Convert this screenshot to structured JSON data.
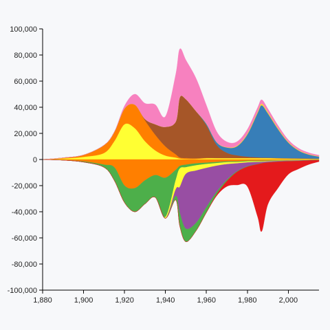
{
  "chart_data": {
    "type": "area",
    "stacking": "diverging",
    "curve": "smooth",
    "xlim": [
      1880,
      2015
    ],
    "ylim": [
      -100000,
      100000
    ],
    "x_ticks": [
      1880,
      1900,
      1920,
      1940,
      1960,
      1980,
      2000
    ],
    "y_ticks": [
      100000,
      80000,
      60000,
      40000,
      20000,
      0,
      -20000,
      -40000,
      -60000,
      -80000,
      -100000
    ],
    "x_tick_labels": [
      "1,880",
      "1,900",
      "1,920",
      "1,940",
      "1,960",
      "1,980",
      "2,000"
    ],
    "y_tick_labels": [
      "100,000",
      "80,000",
      "60,000",
      "40,000",
      "20,000",
      "0",
      "-20,000",
      "-40,000",
      "-60,000",
      "-80,000",
      "-100,000"
    ],
    "x": [
      1880,
      1890,
      1900,
      1910,
      1915,
      1920,
      1925,
      1930,
      1935,
      1940,
      1945,
      1947,
      1950,
      1955,
      1960,
      1965,
      1970,
      1975,
      1980,
      1985,
      1987,
      1990,
      1995,
      2000,
      2005,
      2010,
      2015
    ],
    "upper_series": [
      {
        "color": "#ffff33",
        "values": [
          0,
          800,
          2000,
          5000,
          14000,
          27000,
          24000,
          14000,
          7000,
          3000,
          1500,
          800,
          500,
          500,
          1000,
          1000,
          1000,
          1000,
          1000,
          1000,
          1000,
          1000,
          800,
          700,
          600,
          500,
          400
        ]
      },
      {
        "color": "#ff7f00",
        "values": [
          0,
          500,
          1500,
          6000,
          7000,
          12000,
          18000,
          16000,
          12000,
          7000,
          2500,
          800,
          600,
          400,
          300,
          200,
          200,
          200,
          200,
          200,
          200,
          200,
          200,
          200,
          200,
          200,
          200
        ]
      },
      {
        "color": "#a65628",
        "values": [
          0,
          0,
          0,
          0,
          0,
          0,
          0,
          1000,
          8000,
          15000,
          25000,
          46000,
          45000,
          36000,
          25000,
          10000,
          4000,
          2000,
          1000,
          500,
          300,
          200,
          200,
          100,
          100,
          100,
          100
        ]
      },
      {
        "color": "#377eb8",
        "values": [
          0,
          0,
          0,
          0,
          0,
          0,
          0,
          0,
          0,
          0,
          0,
          0,
          0,
          0,
          1000,
          2000,
          4000,
          7000,
          17000,
          34000,
          40000,
          34000,
          22000,
          12000,
          6000,
          3000,
          1500
        ]
      },
      {
        "color": "#ffd92f",
        "values": [
          0,
          0,
          0,
          0,
          0,
          0,
          0,
          0,
          0,
          0,
          0,
          0,
          0,
          0,
          200,
          200,
          300,
          500,
          800,
          1000,
          1200,
          1000,
          800,
          600,
          500,
          400,
          300
        ]
      },
      {
        "color": "#f781bf",
        "values": [
          0,
          0,
          0,
          0,
          0,
          2000,
          8000,
          12000,
          15000,
          8000,
          36000,
          37000,
          30000,
          25000,
          14000,
          8000,
          4000,
          3000,
          3000,
          3000,
          3000,
          2500,
          2000,
          1500,
          1200,
          1000,
          800
        ]
      }
    ],
    "lower_series": [
      {
        "color": "#ff7f00",
        "values": [
          0,
          500,
          1500,
          4000,
          6000,
          20000,
          22000,
          16000,
          12000,
          14000,
          8000,
          5000,
          4000,
          3000,
          2500,
          2000,
          1500,
          1500,
          1000,
          1000,
          1000,
          800,
          600,
          500,
          400,
          300,
          200
        ]
      },
      {
        "color": "#4daf4a",
        "values": [
          0,
          0,
          500,
          2000,
          10000,
          13000,
          18000,
          18000,
          17000,
          30000,
          8000,
          2000,
          2000,
          1500,
          1000,
          800,
          600,
          500,
          500,
          400,
          400,
          300,
          300,
          200,
          200,
          100,
          100
        ]
      },
      {
        "color": "#ffff33",
        "values": [
          0,
          0,
          0,
          0,
          0,
          0,
          0,
          0,
          0,
          1000,
          7000,
          14000,
          5000,
          4000,
          3000,
          2000,
          1500,
          1000,
          800,
          600,
          500,
          400,
          300,
          200,
          200,
          100,
          100
        ]
      },
      {
        "color": "#984ea3",
        "values": [
          0,
          0,
          0,
          0,
          0,
          0,
          0,
          0,
          0,
          0,
          5000,
          20000,
          42000,
          40000,
          30000,
          20000,
          12000,
          6000,
          3000,
          1500,
          1000,
          800,
          500,
          400,
          300,
          200,
          100
        ]
      },
      {
        "color": "#4daf4a",
        "values": [
          0,
          0,
          0,
          0,
          0,
          0,
          0,
          0,
          0,
          0,
          3000,
          10000,
          10000,
          6000,
          4000,
          2000,
          1000,
          500,
          300,
          200,
          100,
          100,
          100,
          100,
          100,
          100,
          100
        ]
      },
      {
        "color": "#e41a1c",
        "values": [
          0,
          0,
          0,
          0,
          0,
          0,
          0,
          0,
          0,
          0,
          0,
          0,
          0,
          0,
          200,
          1000,
          4000,
          10000,
          15000,
          40000,
          52000,
          32000,
          20000,
          10000,
          6000,
          3000,
          1000
        ]
      }
    ]
  }
}
